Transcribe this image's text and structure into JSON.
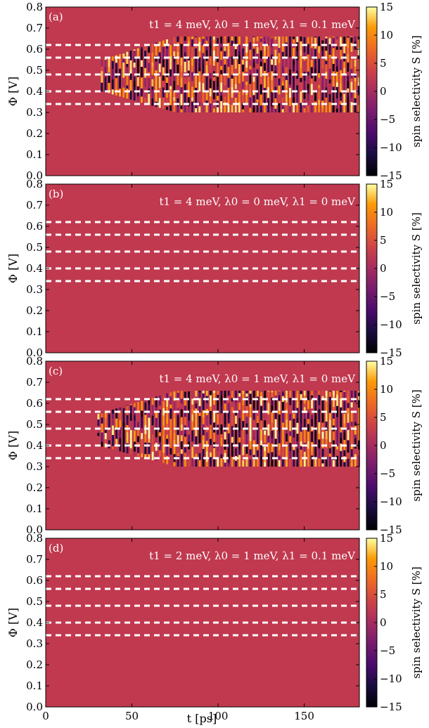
{
  "figure": {
    "xlabel": "t [ps]",
    "ylabel": "Φ [V]",
    "colorbar_label": "spin selectivity S [%]",
    "colormap": "inferno",
    "background_color": "#c0394f"
  },
  "chart_data": [
    {
      "type": "heatmap",
      "panel": "(a)",
      "annotation": "t1 = 4 meV, λ0 = 1 meV, λ1 = 0.1 meV",
      "xlabel": "",
      "ylabel": "Φ [V]",
      "xlim": [
        0,
        182
      ],
      "ylim": [
        0.0,
        0.8
      ],
      "xticks": [
        0,
        50,
        100,
        150
      ],
      "yticks": [
        0.0,
        0.1,
        0.2,
        0.3,
        0.4,
        0.5,
        0.6,
        0.7,
        0.8
      ],
      "clim": [
        -15,
        15
      ],
      "colorbar_ticks": [
        15,
        10,
        5,
        0,
        -5,
        -10,
        -15
      ],
      "dashed_lines_y": [
        0.34,
        0.4,
        0.48,
        0.56,
        0.62
      ],
      "oscillation_region": {
        "t_start": 32,
        "t_end": 182,
        "phi_min": 0.3,
        "phi_max": 0.66,
        "phi_narrow_min": 0.4,
        "phi_narrow_max": 0.55,
        "t_widen": 75
      }
    },
    {
      "type": "heatmap",
      "panel": "(b)",
      "annotation": "t1 = 4 meV, λ0 = 0 meV, λ1 = 0 meV",
      "xlabel": "",
      "ylabel": "Φ [V]",
      "xlim": [
        0,
        182
      ],
      "ylim": [
        0.0,
        0.8
      ],
      "xticks": [
        0,
        50,
        100,
        150
      ],
      "yticks": [
        0.0,
        0.1,
        0.2,
        0.3,
        0.4,
        0.5,
        0.6,
        0.7,
        0.8
      ],
      "clim": [
        -15,
        15
      ],
      "colorbar_ticks": [
        15,
        10,
        5,
        0,
        -5,
        -10,
        -15
      ],
      "dashed_lines_y": [
        0.34,
        0.4,
        0.48,
        0.56,
        0.62
      ],
      "oscillation_region": null
    },
    {
      "type": "heatmap",
      "panel": "(c)",
      "annotation": "t1 = 4 meV, λ0 = 1 meV, λ1 = 0 meV",
      "xlabel": "",
      "ylabel": "Φ [V]",
      "xlim": [
        0,
        182
      ],
      "ylim": [
        0.0,
        0.8
      ],
      "xticks": [
        0,
        50,
        100,
        150
      ],
      "yticks": [
        0.0,
        0.1,
        0.2,
        0.3,
        0.4,
        0.5,
        0.6,
        0.7,
        0.8
      ],
      "clim": [
        -15,
        15
      ],
      "colorbar_ticks": [
        15,
        10,
        5,
        0,
        -5,
        -10,
        -15
      ],
      "dashed_lines_y": [
        0.34,
        0.4,
        0.48,
        0.56,
        0.62
      ],
      "oscillation_region": {
        "t_start": 30,
        "t_end": 182,
        "phi_min": 0.3,
        "phi_max": 0.66,
        "phi_narrow_min": 0.4,
        "phi_narrow_max": 0.55,
        "t_widen": 75
      }
    },
    {
      "type": "heatmap",
      "panel": "(d)",
      "annotation": "t1 = 2 meV, λ0 = 1 meV, λ1 = 0.1 meV",
      "xlabel": "t [ps]",
      "ylabel": "Φ [V]",
      "xlim": [
        0,
        182
      ],
      "ylim": [
        0.0,
        0.8
      ],
      "xticks": [
        0,
        50,
        100,
        150
      ],
      "yticks": [
        0.0,
        0.1,
        0.2,
        0.3,
        0.4,
        0.5,
        0.6,
        0.7,
        0.8
      ],
      "clim": [
        -15,
        15
      ],
      "colorbar_ticks": [
        15,
        10,
        5,
        0,
        -5,
        -10,
        -15
      ],
      "dashed_lines_y": [
        0.34,
        0.4,
        0.48,
        0.56,
        0.62
      ],
      "oscillation_region": null
    }
  ]
}
